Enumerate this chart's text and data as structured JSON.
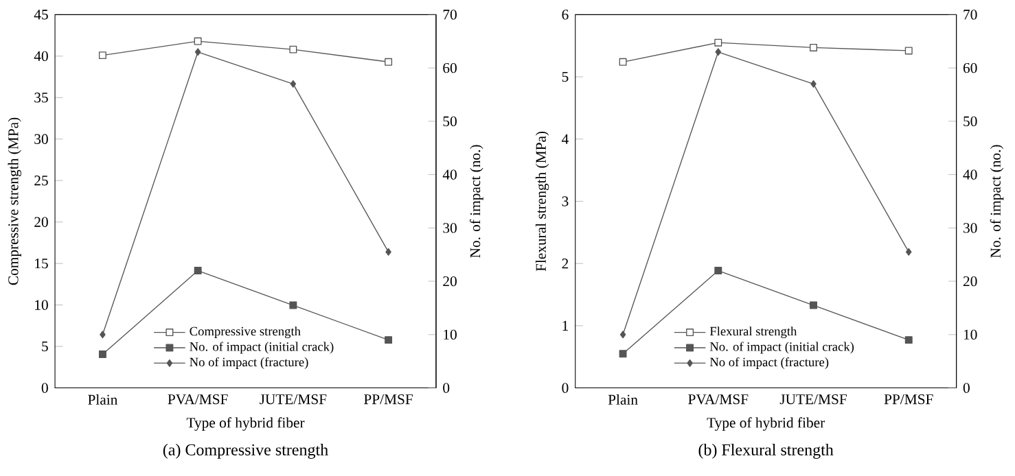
{
  "chart_data": [
    {
      "type": "line",
      "title": "(a) Compressive strength",
      "xlabel": "Type of hybrid fiber",
      "ylabel": "Compressive strength (MPa)",
      "y2label": "No. of impact (no.)",
      "categories": [
        "Plain",
        "PVA/MSF",
        "JUTE/MSF",
        "PP/MSF"
      ],
      "series": [
        {
          "name": "Compressive strength",
          "color": "#555555",
          "values": [
            40.1,
            41.8,
            40.8,
            39.3
          ],
          "axis": "y",
          "marker": "square"
        },
        {
          "name": "No. of impact (initial crack)",
          "color": "#555555",
          "values": [
            6.3,
            22,
            15.5,
            9
          ],
          "axis": "y2",
          "marker": "square"
        },
        {
          "name": "No of impact (fracture)",
          "color": "#555555",
          "values": [
            10,
            63,
            57,
            25.5
          ],
          "axis": "y2",
          "marker": "diamond"
        }
      ],
      "ylim": [
        0,
        45
      ],
      "yticks": [
        0,
        5,
        10,
        15,
        20,
        25,
        30,
        35,
        40,
        45
      ],
      "y2lim": [
        0,
        70
      ],
      "y2ticks": [
        0,
        10,
        20,
        30,
        40,
        50,
        60,
        70
      ],
      "legend": "bottom"
    },
    {
      "type": "line",
      "title": "(b) Flexural strength",
      "xlabel": "Type of hybrid fiber",
      "ylabel": "Flexural strength (MPa)",
      "y2label": "No. of impact (no.)",
      "categories": [
        "Plain",
        "PVA/MSF",
        "JUTE/MSF",
        "PP/MSF"
      ],
      "series": [
        {
          "name": "Flexural strength",
          "color": "#555555",
          "values": [
            5.24,
            5.55,
            5.47,
            5.42
          ],
          "axis": "y",
          "marker": "square"
        },
        {
          "name": "No. of impact (initial crack)",
          "color": "#555555",
          "values": [
            6.4,
            22,
            15.5,
            9
          ],
          "axis": "y2",
          "marker": "square"
        },
        {
          "name": "No of impact (fracture)",
          "color": "#555555",
          "values": [
            10,
            63,
            57,
            25.5
          ],
          "axis": "y2",
          "marker": "diamond"
        }
      ],
      "ylim": [
        0,
        6
      ],
      "yticks": [
        0,
        1,
        2,
        3,
        4,
        5,
        6
      ],
      "y2lim": [
        0,
        70
      ],
      "y2ticks": [
        0,
        10,
        20,
        30,
        40,
        50,
        60,
        70
      ],
      "legend": "bottom"
    }
  ]
}
